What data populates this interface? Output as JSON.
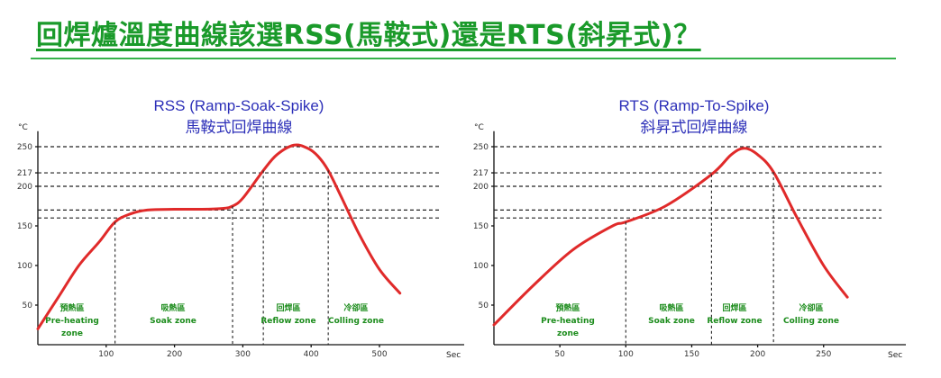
{
  "headline": "回焊爐溫度曲線該選RSS(馬鞍式)還是RTS(斜昇式)？",
  "colors": {
    "headline": "#1a9a2a",
    "chart_title": "#2c2fb8",
    "curve": "#e02a2a",
    "zone_label": "#1c8c1c"
  },
  "chart_data": [
    {
      "type": "line",
      "title": "RSS (Ramp-Soak-Spike)",
      "subtitle": "馬鞍式回焊曲線",
      "ylabel": "°C",
      "xlabel": "Sec",
      "xlim": [
        0,
        620
      ],
      "ylim": [
        0,
        290
      ],
      "x_ticks": [
        100,
        200,
        300,
        400,
        500
      ],
      "y_ticks": [
        50,
        100,
        150,
        200,
        217,
        250
      ],
      "reference_lines_y": [
        250,
        217,
        200,
        170,
        160
      ],
      "zone_boundaries_x": [
        113,
        285,
        330,
        425
      ],
      "series": [
        {
          "x": [
            0,
            30,
            60,
            90,
            113,
            135,
            160,
            200,
            240,
            270,
            285,
            300,
            330,
            350,
            375,
            395,
            410,
            425,
            445,
            470,
            500,
            530
          ],
          "values": [
            20,
            60,
            100,
            130,
            155,
            165,
            170,
            171,
            171,
            172,
            175,
            185,
            220,
            240,
            252,
            248,
            238,
            220,
            185,
            140,
            95,
            65
          ]
        }
      ],
      "zones": [
        {
          "zh": "預熱區",
          "en": "Pre-heating",
          "en2": "zone"
        },
        {
          "zh": "吸熱區",
          "en": "Soak zone"
        },
        {
          "zh": "回焊區",
          "en": "Reflow zone"
        },
        {
          "zh": "冷卻區",
          "en": "Colling zone"
        }
      ]
    },
    {
      "type": "line",
      "title": "RTS (Ramp-To-Spike)",
      "subtitle": "斜昇式回焊曲線",
      "ylabel": "°C",
      "xlabel": "Sec",
      "xlim": [
        0,
        310
      ],
      "ylim": [
        0,
        290
      ],
      "x_ticks": [
        50,
        100,
        150,
        200,
        250
      ],
      "y_ticks": [
        50,
        100,
        150,
        200,
        217,
        250
      ],
      "reference_lines_y": [
        250,
        217,
        200,
        170,
        160
      ],
      "zone_boundaries_x": [
        100,
        165,
        212
      ],
      "series": [
        {
          "x": [
            0,
            30,
            60,
            90,
            100,
            130,
            165,
            180,
            190,
            200,
            212,
            230,
            250,
            268
          ],
          "values": [
            25,
            75,
            120,
            150,
            155,
            175,
            215,
            240,
            248,
            240,
            218,
            160,
            100,
            60
          ]
        }
      ],
      "zones": [
        {
          "zh": "預熱區",
          "en": "Pre-heating",
          "en2": "zone"
        },
        {
          "zh": "吸熱區",
          "en": "Soak zone"
        },
        {
          "zh": "回焊區",
          "en": "Reflow zone"
        },
        {
          "zh": "冷卻區",
          "en": "Colling zone"
        }
      ]
    }
  ]
}
